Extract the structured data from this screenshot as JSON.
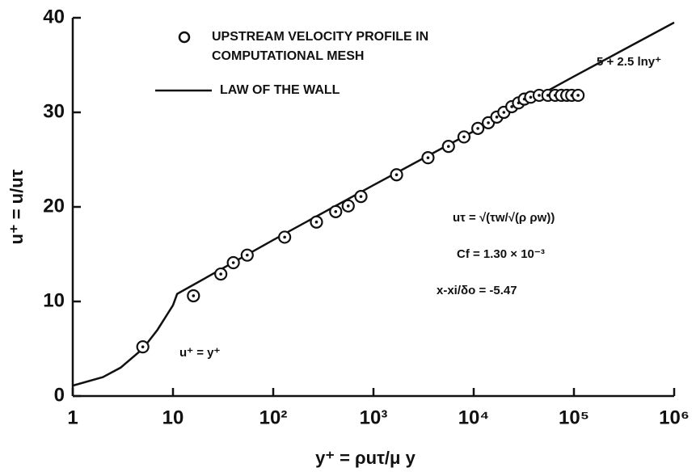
{
  "chart_data": {
    "type": "scatter",
    "xlabel": "y⁺ = ρuτ/μ y",
    "ylabel": "u⁺ = u/uτ",
    "xscale": "log",
    "xlim": [
      1,
      1000000
    ],
    "ylim": [
      0,
      40
    ],
    "xticks": [
      1,
      10,
      {
        "value": 100,
        "label": "10²"
      },
      {
        "value": 1000,
        "label": "10³"
      },
      {
        "value": 10000,
        "label": "10⁴"
      },
      {
        "value": 100000,
        "label": "10⁵"
      },
      {
        "value": 1000000,
        "label": "10⁶"
      }
    ],
    "yticks": [
      0,
      10,
      20,
      30,
      40
    ],
    "series": [
      {
        "name": "UPSTREAM VELOCITY PROFILE IN COMPUTATIONAL MESH",
        "type": "scatter",
        "color": "#111111",
        "x": [
          5,
          16,
          30,
          40,
          55,
          130,
          270,
          420,
          560,
          750,
          1700,
          3500,
          5600,
          8000,
          11000,
          14000,
          17000,
          20000,
          24000,
          28000,
          32000,
          37000,
          45000,
          55000,
          65000,
          75000,
          85000,
          95000,
          110000
        ],
        "values": [
          5.2,
          10.6,
          12.9,
          14.1,
          14.9,
          16.8,
          18.4,
          19.5,
          20.1,
          21.1,
          23.4,
          25.2,
          26.4,
          27.4,
          28.3,
          28.9,
          29.5,
          30.0,
          30.6,
          31.0,
          31.4,
          31.6,
          31.8,
          31.8,
          31.8,
          31.8,
          31.8,
          31.8,
          31.8
        ]
      },
      {
        "name": "LAW OF THE WALL",
        "type": "line",
        "color": "#111111",
        "x": [
          1,
          2,
          3,
          5,
          7,
          10,
          11,
          100,
          1000,
          10000,
          100000,
          1000000
        ],
        "values": [
          1.1,
          2.0,
          3.0,
          5.0,
          7.0,
          9.6,
          10.8,
          16.5,
          22.3,
          28.0,
          33.8,
          39.5
        ]
      }
    ],
    "annotations": [
      "5 + 2.5 lny⁺",
      "u⁺ = y⁺",
      "uτ = √(τw/√(ρ ρw))",
      "Cf = 1.30 × 10⁻³",
      "x-xi/δo = -5.47"
    ]
  }
}
